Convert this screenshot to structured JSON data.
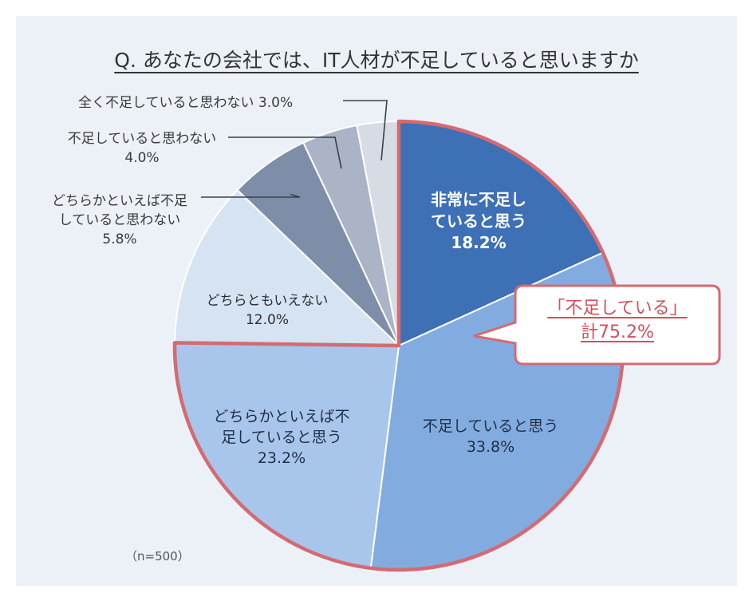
{
  "title": "Q. あなたの会社では、IT人材が不足していると思いますか",
  "sample": "（n=500）",
  "callout": {
    "line1": "「不足している」",
    "line2": "計75.2%"
  },
  "colors": {
    "accent_border": "#d46a72"
  },
  "chart_data": {
    "type": "pie",
    "title": "Q. あなたの会社では、IT人材が不足していると思いますか",
    "slices": [
      {
        "label": "非常に不足していると思う",
        "label_lines": [
          "非常に不足し",
          "ていると思う"
        ],
        "value": 18.2,
        "value_text": "18.2%",
        "color": "#3d70b4"
      },
      {
        "label": "不足していると思う",
        "label_lines": [
          "不足していると思う"
        ],
        "value": 33.8,
        "value_text": "33.8%",
        "color": "#82acdf"
      },
      {
        "label": "どちらかといえば不足していると思う",
        "label_lines": [
          "どちらかといえば不",
          "足していると思う"
        ],
        "value": 23.2,
        "value_text": "23.2%",
        "color": "#a8c6eb"
      },
      {
        "label": "どちらともいえない",
        "label_lines": [
          "どちらともいえない"
        ],
        "value": 12.0,
        "value_text": "12.0%",
        "color": "#d5e3f3"
      },
      {
        "label": "どちらかといえば不足していると思わない",
        "label_lines": [
          "どちらかといえば不足",
          "していると思わない"
        ],
        "value": 5.8,
        "value_text": "5.8%",
        "color": "#7f8ea8"
      },
      {
        "label": "不足していると思わない",
        "label_lines": [
          "不足していると思わない"
        ],
        "value": 4.0,
        "value_text": "4.0%",
        "color": "#aab4c6"
      },
      {
        "label": "全く不足していると思わない",
        "label_lines": [
          "全く不足していると思わない"
        ],
        "value": 3.0,
        "value_text": "3.0%",
        "color": "#d7dbe3"
      }
    ]
  }
}
